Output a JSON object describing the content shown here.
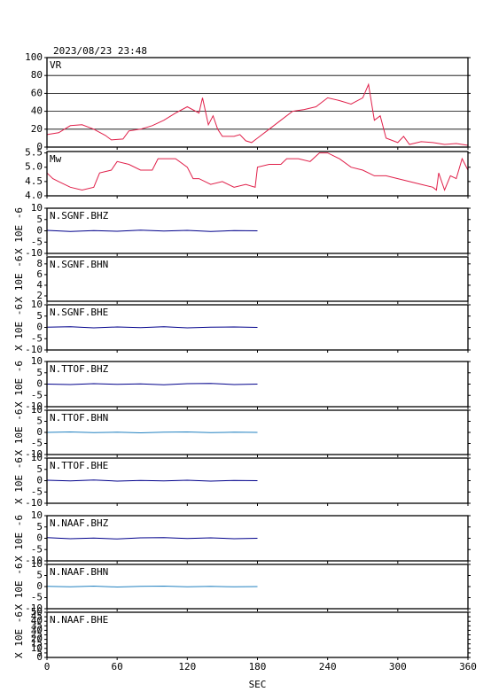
{
  "chart_data": [
    {
      "type": "line",
      "title": "2023/08/23 23:48",
      "xlim": [
        0,
        360
      ],
      "xticks": [
        0,
        60,
        120,
        180,
        240,
        300,
        360
      ],
      "ylim": [
        0,
        100
      ],
      "yticks": [
        0,
        20,
        40,
        60,
        80,
        100
      ],
      "grid": true,
      "x": [
        0,
        10,
        20,
        30,
        40,
        50,
        55,
        65,
        70,
        80,
        90,
        100,
        110,
        120,
        130,
        133,
        138,
        142,
        146,
        150,
        160,
        165,
        170,
        175,
        180,
        190,
        200,
        210,
        220,
        230,
        240,
        250,
        260,
        270,
        275,
        280,
        285,
        290,
        300,
        305,
        310,
        320,
        330,
        340,
        350,
        360
      ],
      "series": [
        {
          "name": "VR",
          "color": "#e0204a",
          "values": [
            14,
            16,
            24,
            25,
            20,
            13,
            8,
            9,
            18,
            20,
            24,
            30,
            38,
            45,
            38,
            55,
            25,
            35,
            20,
            12,
            12,
            14,
            7,
            5,
            10,
            20,
            30,
            40,
            42,
            45,
            55,
            52,
            48,
            55,
            70,
            30,
            35,
            10,
            5,
            12,
            3,
            6,
            5,
            3,
            4,
            2
          ]
        }
      ]
    },
    {
      "type": "line",
      "xlim": [
        0,
        360
      ],
      "xticks": [
        0,
        60,
        120,
        180,
        240,
        300,
        360
      ],
      "ylim": [
        4,
        5.55
      ],
      "yticks": [
        {
          "value": 4,
          "label": "4.0"
        },
        4.5,
        {
          "value": 5,
          "label": "5.0"
        },
        5.5
      ],
      "grid": false,
      "x": [
        0,
        5,
        10,
        20,
        30,
        40,
        45,
        55,
        60,
        70,
        80,
        90,
        95,
        110,
        120,
        125,
        130,
        140,
        150,
        160,
        170,
        178,
        180,
        190,
        200,
        205,
        215,
        225,
        233,
        240,
        250,
        260,
        270,
        280,
        290,
        300,
        310,
        320,
        330,
        333,
        335,
        340,
        345,
        350,
        355,
        360
      ],
      "series": [
        {
          "name": "Mw",
          "color": "#e0204a",
          "values": [
            4.8,
            4.6,
            4.5,
            4.3,
            4.2,
            4.3,
            4.8,
            4.9,
            5.2,
            5.1,
            4.9,
            4.9,
            5.3,
            5.3,
            5.0,
            4.6,
            4.6,
            4.4,
            4.5,
            4.3,
            4.4,
            4.3,
            5.0,
            5.1,
            5.1,
            5.3,
            5.3,
            5.2,
            5.5,
            5.5,
            5.3,
            5.0,
            4.9,
            4.7,
            4.7,
            4.6,
            4.5,
            4.4,
            4.3,
            4.2,
            4.8,
            4.2,
            4.7,
            4.6,
            5.3,
            4.9
          ]
        }
      ]
    },
    {
      "type": "line",
      "ylabel": "X 10E -6",
      "xlim": [
        0,
        360
      ],
      "xticks": [
        0,
        60,
        120,
        180,
        240,
        300,
        360
      ],
      "ylim": [
        -10,
        10
      ],
      "yticks": [
        -10,
        -5,
        0,
        5,
        10
      ],
      "x": [
        0,
        20,
        40,
        60,
        80,
        100,
        120,
        140,
        160,
        180
      ],
      "series": [
        {
          "name": "N.SGNF.BHZ",
          "color": "#00008b",
          "values": [
            0.2,
            -0.3,
            0.1,
            -0.2,
            0.3,
            -0.1,
            0.2,
            -0.3,
            0.1,
            0
          ]
        }
      ]
    },
    {
      "type": "line",
      "ylabel": "X 10E -6",
      "xlim": [
        0,
        360
      ],
      "xticks": [
        0,
        60,
        120,
        180,
        240,
        300,
        360
      ],
      "ylim": [
        1,
        9.3
      ],
      "yticks": [
        2,
        4,
        6,
        8
      ],
      "x": [],
      "series": [
        {
          "name": "N.SGNF.BHN",
          "color": "#2080c0",
          "values": []
        }
      ]
    },
    {
      "type": "line",
      "ylabel": "X 10E -6",
      "xlim": [
        0,
        360
      ],
      "xticks": [
        0,
        60,
        120,
        180,
        240,
        300,
        360
      ],
      "ylim": [
        -10,
        10
      ],
      "yticks": [
        -10,
        -5,
        0,
        5,
        10
      ],
      "x": [
        0,
        20,
        40,
        60,
        80,
        100,
        120,
        140,
        160,
        180
      ],
      "series": [
        {
          "name": "N.SGNF.BHE",
          "color": "#00008b",
          "values": [
            0.1,
            0.3,
            -0.2,
            0.2,
            -0.1,
            0.3,
            -0.2,
            0.1,
            0.2,
            0
          ]
        }
      ]
    },
    {
      "type": "line",
      "ylabel": "X 10E -6",
      "xlim": [
        0,
        360
      ],
      "xticks": [
        0,
        60,
        120,
        180,
        240,
        300,
        360
      ],
      "ylim": [
        -10,
        10
      ],
      "yticks": [
        -10,
        -5,
        0,
        5,
        10
      ],
      "x": [
        0,
        20,
        40,
        60,
        80,
        100,
        120,
        140,
        160,
        180
      ],
      "series": [
        {
          "name": "N.TTOF.BHZ",
          "color": "#00008b",
          "values": [
            0,
            -0.2,
            0.2,
            -0.1,
            0.1,
            -0.3,
            0.2,
            0.3,
            -0.2,
            0
          ]
        }
      ]
    },
    {
      "type": "line",
      "ylabel": "X 10E -6",
      "xlim": [
        0,
        360
      ],
      "xticks": [
        0,
        60,
        120,
        180,
        240,
        300,
        360
      ],
      "ylim": [
        -10,
        10
      ],
      "yticks": [
        -10,
        -5,
        0,
        5,
        10
      ],
      "x": [
        0,
        20,
        40,
        60,
        80,
        100,
        120,
        140,
        160,
        180
      ],
      "series": [
        {
          "name": "N.TTOF.BHN",
          "color": "#2080c0",
          "values": [
            0,
            0.2,
            -0.1,
            0.1,
            -0.2,
            0.1,
            0.2,
            -0.1,
            0.1,
            0
          ]
        }
      ]
    },
    {
      "type": "line",
      "ylabel": "X 10E -6",
      "xlim": [
        0,
        360
      ],
      "xticks": [
        0,
        60,
        120,
        180,
        240,
        300,
        360
      ],
      "ylim": [
        -10,
        10
      ],
      "yticks": [
        -10,
        -5,
        0,
        5,
        10
      ],
      "x": [
        0,
        20,
        40,
        60,
        80,
        100,
        120,
        140,
        160,
        180
      ],
      "series": [
        {
          "name": "N.TTOF.BHE",
          "color": "#00008b",
          "values": [
            0.2,
            -0.1,
            0.3,
            -0.2,
            0.1,
            -0.1,
            0.2,
            -0.2,
            0.1,
            0
          ]
        }
      ]
    },
    {
      "type": "line",
      "ylabel": "X 10E -6",
      "xlim": [
        0,
        360
      ],
      "xticks": [
        0,
        60,
        120,
        180,
        240,
        300,
        360
      ],
      "ylim": [
        -10,
        10
      ],
      "yticks": [
        -10,
        -5,
        0,
        5,
        10
      ],
      "x": [
        0,
        20,
        40,
        60,
        80,
        100,
        120,
        140,
        160,
        180
      ],
      "series": [
        {
          "name": "N.NAAF.BHZ",
          "color": "#00008b",
          "values": [
            0.3,
            -0.2,
            0.1,
            -0.3,
            0.2,
            0.3,
            -0.1,
            0.2,
            -0.2,
            0
          ]
        }
      ]
    },
    {
      "type": "line",
      "ylabel": "X 10E -6",
      "xlim": [
        0,
        360
      ],
      "xticks": [
        0,
        60,
        120,
        180,
        240,
        300,
        360
      ],
      "ylim": [
        -10,
        10
      ],
      "yticks": [
        -10,
        -5,
        0,
        5,
        10
      ],
      "x": [
        0,
        20,
        40,
        60,
        80,
        100,
        120,
        140,
        160,
        180
      ],
      "series": [
        {
          "name": "N.NAAF.BHN",
          "color": "#2080c0",
          "values": [
            0.1,
            -0.1,
            0.2,
            -0.2,
            0.1,
            0.2,
            -0.1,
            0.1,
            -0.1,
            0
          ]
        }
      ]
    },
    {
      "type": "line",
      "ylabel": "X 10E -6",
      "xlabel": "SEC",
      "xlim": [
        0,
        360
      ],
      "xticks": [
        0,
        60,
        120,
        180,
        240,
        300,
        360
      ],
      "ylim": [
        0,
        50
      ],
      "yticks": [
        0,
        5,
        10,
        15,
        20,
        25,
        30,
        35,
        40,
        45,
        50
      ],
      "x": [],
      "series": [
        {
          "name": "N.NAAF.BHE",
          "color": "#00008b",
          "values": []
        }
      ]
    }
  ]
}
